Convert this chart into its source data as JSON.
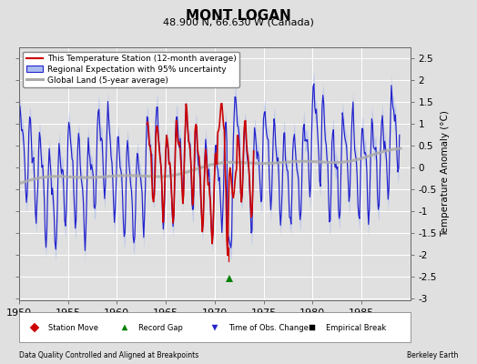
{
  "title": "MONT LOGAN",
  "subtitle": "48.900 N, 66.630 W (Canada)",
  "ylabel": "Temperature Anomaly (°C)",
  "xlabel_left": "Data Quality Controlled and Aligned at Breakpoints",
  "xlabel_right": "Berkeley Earth",
  "xlim": [
    1950,
    1990
  ],
  "ylim": [
    -3.05,
    2.75
  ],
  "yticks": [
    -3,
    -2.5,
    -2,
    -1.5,
    -1,
    -0.5,
    0,
    0.5,
    1,
    1.5,
    2,
    2.5
  ],
  "xticks": [
    1950,
    1955,
    1960,
    1965,
    1970,
    1975,
    1980,
    1985
  ],
  "bg_color": "#e0e0e0",
  "plot_bg_color": "#e0e0e0",
  "grid_color": "white",
  "record_gap_x": 1971.5,
  "record_gap_y": -2.55,
  "blue_color": "#2222cc",
  "blue_band_color": "#aabbee",
  "red_color": "#cc0000",
  "gray_color": "#aaaaaa"
}
